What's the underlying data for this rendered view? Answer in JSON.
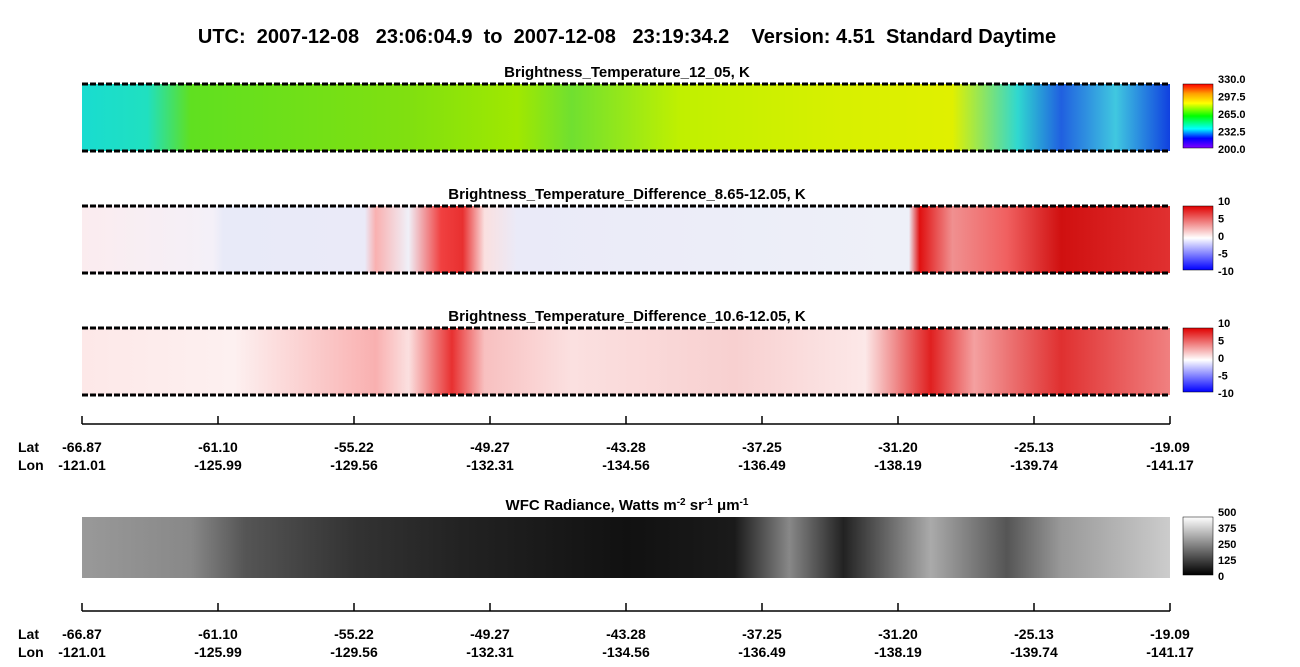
{
  "title": "UTC:  2007-12-08   23:06:04.9  to  2007-12-08   23:19:34.2    Version: 4.51  Standard Daytime",
  "panels": [
    {
      "title": "Brightness_Temperature_12_05, K",
      "colorbar": [
        "330.0",
        "297.5",
        "265.0",
        "232.5",
        "200.0"
      ]
    },
    {
      "title": "Brightness_Temperature_Difference_8.65-12.05, K",
      "colorbar": [
        "10",
        "5",
        "0",
        "-5",
        "-10"
      ]
    },
    {
      "title": "Brightness_Temperature_Difference_10.6-12.05, K",
      "colorbar": [
        "10",
        "5",
        "0",
        "-5",
        "-10"
      ]
    }
  ],
  "wfc": {
    "title": [
      "WFC Radiance, Watts m",
      "-2",
      " sr",
      "-1",
      " μm",
      "-1"
    ],
    "colorbar": [
      "500",
      "375",
      "250",
      "125",
      "0"
    ]
  },
  "axis": {
    "row_labels": [
      "Lat",
      "Lon"
    ],
    "lat": [
      "-66.87",
      "-61.10",
      "-55.22",
      "-49.27",
      "-43.28",
      "-37.25",
      "-31.20",
      "-25.13",
      "-19.09"
    ],
    "lon": [
      "-121.01",
      "-125.99",
      "-129.56",
      "-132.31",
      "-134.56",
      "-136.49",
      "-138.19",
      "-139.74",
      "-141.17"
    ]
  }
}
